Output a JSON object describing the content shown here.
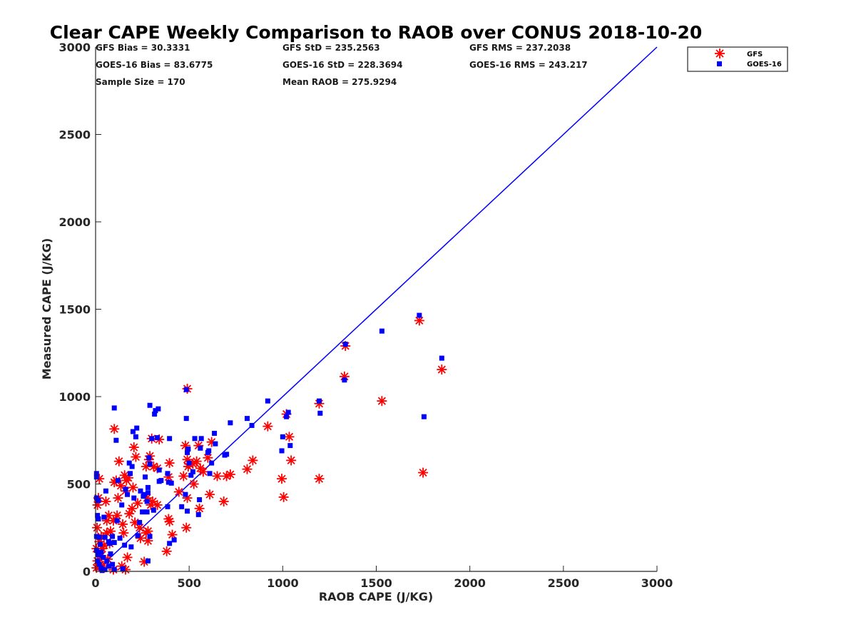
{
  "chart_data": {
    "type": "scatter",
    "title": "Clear CAPE Weekly Comparison to RAOB over CONUS 2018-10-20",
    "xlabel": "RAOB CAPE (J/KG)",
    "ylabel": "Measured CAPE (J/KG)",
    "xlim": [
      0,
      3000
    ],
    "ylim": [
      0,
      3000
    ],
    "xticks": [
      "0",
      "500",
      "1000",
      "1500",
      "2000",
      "2500",
      "3000"
    ],
    "yticks": [
      "0",
      "500",
      "1000",
      "1500",
      "2000",
      "2500",
      "3000"
    ],
    "grid": false,
    "legend_position": "top-right",
    "reference_line": {
      "x": [
        0,
        3000
      ],
      "y": [
        0,
        3000
      ],
      "color": "#0000ff"
    },
    "stats": {
      "gfs_bias": "GFS Bias = 30.3331",
      "gfs_std": "GFS StD = 235.2563",
      "gfs_rms": "GFS RMS = 237.2038",
      "goes_bias": "GOES-16 Bias = 83.6775",
      "goes_std": "GOES-16 StD = 228.3694",
      "goes_rms": "GOES-16 RMS = 243.217",
      "sample_size": "Sample Size = 170",
      "mean_raob": "Mean RAOB = 275.9294"
    },
    "series": [
      {
        "name": "GFS",
        "marker": "asterisk",
        "color": "#ff0000",
        "points": [
          [
            1730,
            1435
          ],
          [
            1335,
            1290
          ],
          [
            1330,
            1115
          ],
          [
            1850,
            1155
          ],
          [
            1530,
            975
          ],
          [
            1750,
            565
          ],
          [
            1195,
            960
          ],
          [
            1195,
            530
          ],
          [
            1020,
            900
          ],
          [
            1035,
            770
          ],
          [
            1045,
            635
          ],
          [
            1005,
            425
          ],
          [
            995,
            530
          ],
          [
            920,
            830
          ],
          [
            840,
            635
          ],
          [
            810,
            585
          ],
          [
            720,
            555
          ],
          [
            700,
            545
          ],
          [
            685,
            400
          ],
          [
            650,
            545
          ],
          [
            610,
            440
          ],
          [
            620,
            740
          ],
          [
            600,
            650
          ],
          [
            560,
            590
          ],
          [
            555,
            360
          ],
          [
            550,
            720
          ],
          [
            540,
            630
          ],
          [
            520,
            615
          ],
          [
            500,
            615
          ],
          [
            490,
            1045
          ],
          [
            480,
            720
          ],
          [
            490,
            640
          ],
          [
            495,
            600
          ],
          [
            470,
            545
          ],
          [
            490,
            420
          ],
          [
            485,
            250
          ],
          [
            445,
            455
          ],
          [
            410,
            210
          ],
          [
            395,
            620
          ],
          [
            390,
            540
          ],
          [
            390,
            300
          ],
          [
            395,
            285
          ],
          [
            380,
            115
          ],
          [
            340,
            755
          ],
          [
            330,
            590
          ],
          [
            310,
            600
          ],
          [
            300,
            760
          ],
          [
            305,
            400
          ],
          [
            295,
            380
          ],
          [
            290,
            660
          ],
          [
            285,
            640
          ],
          [
            270,
            600
          ],
          [
            275,
            420
          ],
          [
            280,
            230
          ],
          [
            280,
            175
          ],
          [
            270,
            220
          ],
          [
            260,
            55
          ],
          [
            240,
            190
          ],
          [
            225,
            390
          ],
          [
            215,
            655
          ],
          [
            205,
            710
          ],
          [
            200,
            480
          ],
          [
            195,
            360
          ],
          [
            180,
            330
          ],
          [
            175,
            535
          ],
          [
            165,
            520
          ],
          [
            160,
            460
          ],
          [
            155,
            550
          ],
          [
            150,
            220
          ],
          [
            145,
            270
          ],
          [
            135,
            490
          ],
          [
            120,
            420
          ],
          [
            125,
            630
          ],
          [
            110,
            520
          ],
          [
            100,
            815
          ],
          [
            100,
            510
          ],
          [
            95,
            290
          ],
          [
            95,
            10
          ],
          [
            80,
            230
          ],
          [
            75,
            160
          ],
          [
            70,
            320
          ],
          [
            60,
            290
          ],
          [
            60,
            220
          ],
          [
            55,
            400
          ],
          [
            45,
            150
          ],
          [
            35,
            130
          ],
          [
            30,
            90
          ],
          [
            25,
            40
          ],
          [
            20,
            530
          ],
          [
            15,
            420
          ],
          [
            10,
            380
          ],
          [
            8,
            250
          ],
          [
            5,
            130
          ],
          [
            5,
            20
          ],
          [
            10,
            60
          ],
          [
            20,
            170
          ],
          [
            40,
            30
          ],
          [
            140,
            30
          ],
          [
            160,
            10
          ],
          [
            210,
            280
          ],
          [
            115,
            320
          ],
          [
            235,
            250
          ],
          [
            330,
            380
          ],
          [
            525,
            500
          ],
          [
            575,
            570
          ],
          [
            170,
            80
          ],
          [
            65,
            70
          ],
          [
            30,
            200
          ]
        ]
      },
      {
        "name": "GOES-16",
        "marker": "square",
        "color": "#0000ff",
        "points": [
          [
            1730,
            1465
          ],
          [
            1530,
            1375
          ],
          [
            1335,
            1300
          ],
          [
            1330,
            1095
          ],
          [
            1850,
            1220
          ],
          [
            1755,
            885
          ],
          [
            1195,
            975
          ],
          [
            1200,
            905
          ],
          [
            1020,
            885
          ],
          [
            1030,
            910
          ],
          [
            1040,
            720
          ],
          [
            1000,
            770
          ],
          [
            995,
            690
          ],
          [
            920,
            975
          ],
          [
            835,
            835
          ],
          [
            810,
            875
          ],
          [
            720,
            850
          ],
          [
            690,
            665
          ],
          [
            700,
            670
          ],
          [
            635,
            790
          ],
          [
            640,
            730
          ],
          [
            610,
            560
          ],
          [
            605,
            690
          ],
          [
            600,
            680
          ],
          [
            565,
            760
          ],
          [
            560,
            705
          ],
          [
            555,
            410
          ],
          [
            550,
            325
          ],
          [
            530,
            760
          ],
          [
            520,
            570
          ],
          [
            510,
            550
          ],
          [
            500,
            620
          ],
          [
            495,
            700
          ],
          [
            490,
            680
          ],
          [
            485,
            875
          ],
          [
            485,
            1040
          ],
          [
            480,
            440
          ],
          [
            490,
            345
          ],
          [
            460,
            370
          ],
          [
            420,
            180
          ],
          [
            395,
            760
          ],
          [
            390,
            510
          ],
          [
            385,
            560
          ],
          [
            395,
            160
          ],
          [
            385,
            370
          ],
          [
            340,
            515
          ],
          [
            340,
            580
          ],
          [
            335,
            930
          ],
          [
            320,
            920
          ],
          [
            315,
            900
          ],
          [
            300,
            760
          ],
          [
            290,
            950
          ],
          [
            290,
            615
          ],
          [
            285,
            650
          ],
          [
            280,
            450
          ],
          [
            280,
            480
          ],
          [
            275,
            400
          ],
          [
            275,
            340
          ],
          [
            290,
            200
          ],
          [
            280,
            60
          ],
          [
            265,
            540
          ],
          [
            255,
            430
          ],
          [
            250,
            340
          ],
          [
            235,
            280
          ],
          [
            220,
            820
          ],
          [
            215,
            770
          ],
          [
            200,
            800
          ],
          [
            205,
            420
          ],
          [
            195,
            600
          ],
          [
            190,
            140
          ],
          [
            185,
            560
          ],
          [
            180,
            620
          ],
          [
            170,
            440
          ],
          [
            160,
            470
          ],
          [
            155,
            150
          ],
          [
            140,
            380
          ],
          [
            130,
            190
          ],
          [
            120,
            520
          ],
          [
            115,
            290
          ],
          [
            110,
            750
          ],
          [
            100,
            935
          ],
          [
            100,
            165
          ],
          [
            90,
            200
          ],
          [
            75,
            160
          ],
          [
            70,
            170
          ],
          [
            55,
            460
          ],
          [
            50,
            195
          ],
          [
            45,
            310
          ],
          [
            30,
            110
          ],
          [
            20,
            195
          ],
          [
            15,
            405
          ],
          [
            15,
            300
          ],
          [
            10,
            320
          ],
          [
            5,
            540
          ],
          [
            5,
            560
          ],
          [
            5,
            420
          ],
          [
            5,
            200
          ],
          [
            5,
            120
          ],
          [
            10,
            60
          ],
          [
            20,
            40
          ],
          [
            30,
            20
          ],
          [
            40,
            80
          ],
          [
            50,
            10
          ],
          [
            60,
            60
          ],
          [
            70,
            30
          ],
          [
            80,
            100
          ],
          [
            90,
            40
          ],
          [
            100,
            10
          ],
          [
            145,
            15
          ],
          [
            240,
            460
          ],
          [
            260,
            440
          ],
          [
            225,
            205
          ],
          [
            310,
            350
          ],
          [
            350,
            520
          ],
          [
            405,
            505
          ],
          [
            330,
            765
          ],
          [
            620,
            620
          ],
          [
            15,
            95
          ],
          [
            25,
            155
          ],
          [
            35,
            5
          ]
        ]
      }
    ]
  }
}
